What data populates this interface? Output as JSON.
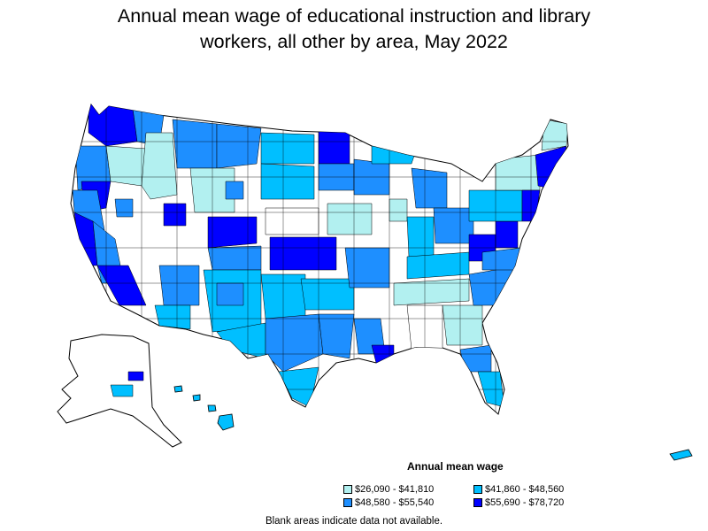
{
  "title": {
    "line1": "Annual mean wage of educational instruction and library",
    "line2": "workers, all other by area, May 2022"
  },
  "legend": {
    "title": "Annual mean wage",
    "items": [
      {
        "label": "$26,090 - $41,810",
        "color": "#b2f0f0"
      },
      {
        "label": "$41,860 - $48,560",
        "color": "#00bfff"
      },
      {
        "label": "$48,580 - $55,540",
        "color": "#1e8fff"
      },
      {
        "label": "$55,690 - $78,720",
        "color": "#0000ff"
      }
    ]
  },
  "footnote": "Blank areas indicate data not available.",
  "colors": {
    "blank": "#ffffff",
    "border": "#000000",
    "tier1": "#b2f0f0",
    "tier2": "#00bfff",
    "tier3": "#1e8fff",
    "tier4": "#0000ff"
  }
}
